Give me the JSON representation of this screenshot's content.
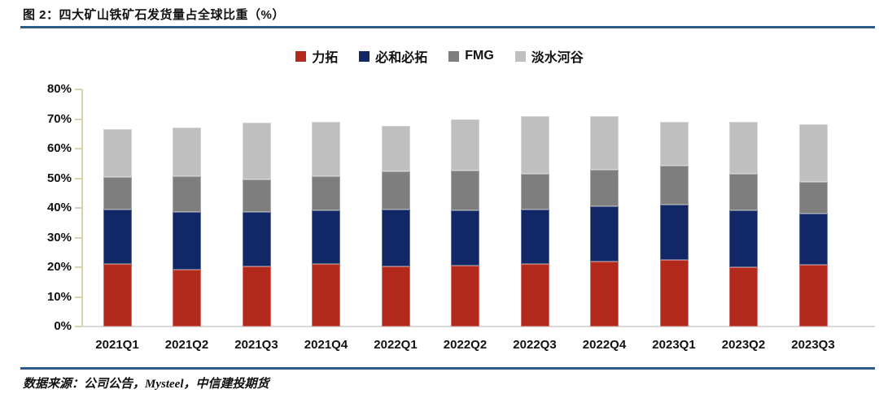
{
  "header": {
    "title": "图 2：四大矿山铁矿石发货量占全球比重（%）"
  },
  "footer": {
    "source": "数据来源：公司公告，Mysteel，中信建投期货"
  },
  "colors": {
    "accent_rule": "#2E5C8A",
    "axis_line": "#D8D2AE",
    "baseline": "#D9D9D9",
    "text": "#111111"
  },
  "chart_data": {
    "type": "bar",
    "stacked": true,
    "title": "四大矿山铁矿石发货量占全球比重（%）",
    "xlabel": "",
    "ylabel": "",
    "ylim": [
      0,
      80
    ],
    "ytick_labels": [
      "0%",
      "10%",
      "20%",
      "30%",
      "40%",
      "50%",
      "60%",
      "70%",
      "80%"
    ],
    "grid": false,
    "legend_position": "top",
    "categories": [
      "2021Q1",
      "2021Q2",
      "2021Q3",
      "2021Q4",
      "2022Q1",
      "2022Q2",
      "2022Q3",
      "2022Q4",
      "2023Q1",
      "2023Q2",
      "2023Q3"
    ],
    "series": [
      {
        "name": "力拓",
        "color": "#B3291B",
        "values": [
          21.0,
          19.3,
          20.4,
          21.0,
          20.4,
          20.6,
          21.1,
          21.9,
          22.6,
          20.1,
          20.7
        ]
      },
      {
        "name": "必和必拓",
        "color": "#122765",
        "values": [
          18.5,
          19.2,
          18.3,
          18.3,
          19.1,
          18.7,
          18.4,
          18.6,
          18.5,
          19.1,
          17.4
        ]
      },
      {
        "name": "FMG",
        "color": "#7E7E7E",
        "values": [
          11.0,
          12.3,
          11.0,
          11.4,
          12.9,
          13.3,
          12.1,
          12.4,
          13.1,
          12.4,
          10.8
        ]
      },
      {
        "name": "淡水河谷",
        "color": "#BFBFBF",
        "values": [
          16.2,
          16.4,
          19.2,
          18.3,
          15.2,
          17.2,
          19.5,
          18.2,
          14.8,
          17.4,
          19.2
        ]
      }
    ],
    "stack_totals": [
      66.7,
      67.2,
      68.9,
      69.0,
      67.6,
      69.8,
      71.1,
      71.1,
      69.0,
      69.0,
      68.1
    ]
  }
}
